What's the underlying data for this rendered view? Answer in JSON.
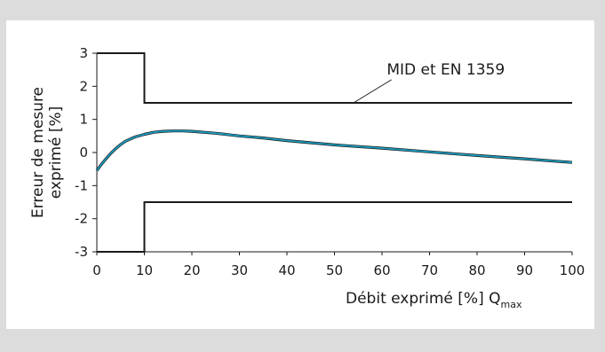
{
  "chart_data": {
    "type": "line",
    "xlabel": "Débit exprimé [%] Q",
    "xlabel_subscript": "max",
    "ylabel": [
      "Erreur de mesure",
      "exprimé [%]"
    ],
    "xlim": [
      0,
      100
    ],
    "ylim": [
      -3,
      3
    ],
    "x_ticks": [
      "0",
      "10",
      "20",
      "30",
      "40",
      "50",
      "60",
      "70",
      "80",
      "90",
      "100"
    ],
    "y_ticks": [
      "3",
      "2",
      "1",
      "0",
      "-1",
      "-2",
      "-3"
    ],
    "grid": false,
    "annotation": "MID et EN 1359",
    "limit_upper": {
      "x": [
        0,
        10,
        10,
        100
      ],
      "y": [
        3,
        3,
        1.5,
        1.5
      ]
    },
    "limit_lower": {
      "x": [
        0,
        10,
        10,
        100
      ],
      "y": [
        -3,
        -3,
        -1.5,
        -1.5
      ]
    },
    "series": [
      {
        "color": "#1c9cc0",
        "x": [
          0,
          1,
          2,
          3,
          4,
          5,
          6,
          8,
          10,
          12,
          14,
          16,
          18,
          20,
          25,
          30,
          35,
          40,
          50,
          60,
          70,
          80,
          90,
          100
        ],
        "y": [
          -0.55,
          -0.35,
          -0.18,
          -0.02,
          0.12,
          0.24,
          0.34,
          0.47,
          0.55,
          0.61,
          0.64,
          0.65,
          0.65,
          0.64,
          0.58,
          0.5,
          0.44,
          0.36,
          0.23,
          0.13,
          0.02,
          -0.09,
          -0.19,
          -0.3
        ]
      }
    ]
  }
}
